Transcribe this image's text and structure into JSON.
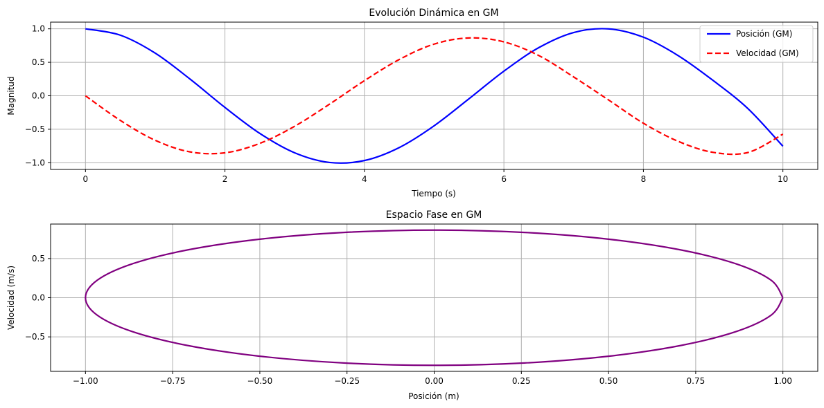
{
  "chart_data": [
    {
      "type": "line",
      "title": "Evolución Dinámica en GM",
      "xlabel": "Tiempo (s)",
      "ylabel": "Magnitud",
      "xlim": [
        -0.5,
        10.5
      ],
      "ylim": [
        -1.1,
        1.1
      ],
      "xticks": [
        0,
        2,
        4,
        6,
        8,
        10
      ],
      "xtick_labels": [
        "0",
        "2",
        "4",
        "6",
        "8",
        "10"
      ],
      "yticks": [
        -1.0,
        -0.5,
        0.0,
        0.5,
        1.0
      ],
      "ytick_labels": [
        "−1.0",
        "−0.5",
        "0.0",
        "0.5",
        "1.0"
      ],
      "grid": true,
      "legend_position": "top-right",
      "x": [
        0,
        0.5,
        1,
        1.5,
        2,
        2.5,
        3,
        3.5,
        4,
        4.5,
        5,
        5.5,
        6,
        6.5,
        7,
        7.5,
        8,
        8.5,
        9,
        9.5,
        10
      ],
      "series": [
        {
          "name": "Posición (GM)",
          "color": "#0000ff",
          "linestyle": "solid",
          "values": [
            1.0,
            0.905,
            0.637,
            0.249,
            -0.174,
            -0.562,
            -0.852,
            -0.996,
            -0.967,
            -0.773,
            -0.448,
            -0.044,
            0.368,
            0.719,
            0.945,
            0.999,
            0.875,
            0.599,
            0.228,
            -0.193,
            -0.754
          ]
        },
        {
          "name": "Velocidad (GM)",
          "color": "#ff0000",
          "linestyle": "dashed",
          "values": [
            0.0,
            -0.368,
            -0.665,
            -0.838,
            -0.852,
            -0.711,
            -0.455,
            -0.125,
            0.226,
            0.542,
            0.772,
            0.864,
            0.805,
            0.601,
            0.281,
            -0.062,
            -0.41,
            -0.681,
            -0.845,
            -0.847,
            -0.573
          ]
        }
      ]
    },
    {
      "type": "line",
      "title": "Espacio Fase en GM",
      "xlabel": "Posición (m)",
      "ylabel": "Velocidad (m/s)",
      "xlim": [
        -1.1,
        1.1
      ],
      "ylim": [
        -0.94,
        0.94
      ],
      "xticks": [
        -1.0,
        -0.75,
        -0.5,
        -0.25,
        0.0,
        0.25,
        0.5,
        0.75,
        1.0
      ],
      "xtick_labels": [
        "−1.00",
        "−0.75",
        "−0.50",
        "−0.25",
        "0.00",
        "0.25",
        "0.50",
        "0.75",
        "1.00"
      ],
      "yticks": [
        -0.5,
        0.0,
        0.5
      ],
      "ytick_labels": [
        "−0.5",
        "0.0",
        "0.5"
      ],
      "grid": true,
      "series": [
        {
          "color": "#800080",
          "linestyle": "solid",
          "x": [
            1.0,
            0.966,
            0.866,
            0.707,
            0.5,
            0.259,
            0.0,
            -0.259,
            -0.5,
            -0.707,
            -0.866,
            -0.966,
            -1.0,
            -0.966,
            -0.866,
            -0.707,
            -0.5,
            -0.259,
            0.0,
            0.259,
            0.5,
            0.707,
            0.866,
            0.966,
            1.0
          ],
          "y": [
            0.0,
            0.224,
            0.432,
            0.61,
            0.747,
            0.833,
            0.863,
            0.833,
            0.747,
            0.61,
            0.432,
            0.224,
            0.0,
            -0.224,
            -0.432,
            -0.61,
            -0.747,
            -0.833,
            -0.863,
            -0.833,
            -0.747,
            -0.61,
            -0.432,
            -0.224,
            0.0
          ]
        }
      ]
    }
  ]
}
